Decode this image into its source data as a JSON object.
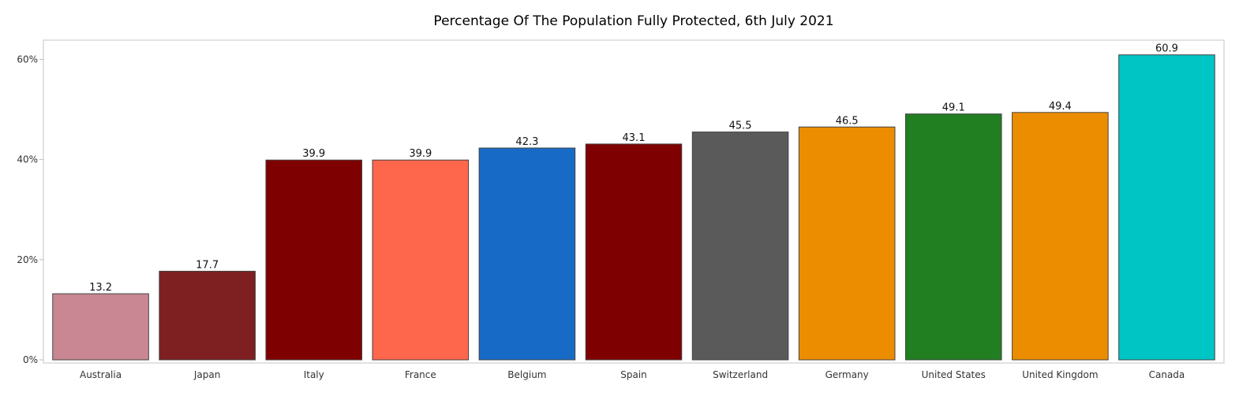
{
  "chart_data": {
    "type": "bar",
    "title": "Percentage Of The Population Fully Protected, 6th July 2021",
    "xlabel": "",
    "ylabel": "",
    "ylim": [
      0,
      63
    ],
    "yticks": [
      0,
      20,
      40,
      60
    ],
    "ytick_labels": [
      "0%",
      "20%",
      "40%",
      "60%"
    ],
    "grid": false,
    "categories": [
      "Australia",
      "Japan",
      "Italy",
      "France",
      "Belgium",
      "Spain",
      "Switzerland",
      "Germany",
      "United States",
      "United Kingdom",
      "Canada"
    ],
    "values": [
      13.2,
      17.7,
      39.9,
      39.9,
      42.3,
      43.1,
      45.5,
      46.5,
      49.1,
      49.4,
      60.9
    ],
    "value_labels": [
      "13.2",
      "17.7",
      "39.9",
      "39.9",
      "42.3",
      "43.1",
      "45.5",
      "46.5",
      "49.1",
      "49.4",
      "60.9"
    ],
    "colors": [
      "#c88792",
      "#7e1f22",
      "#7f0000",
      "#ff674d",
      "#176bc6",
      "#7f0000",
      "#5a5a5a",
      "#ec8d00",
      "#217e21",
      "#ec8d00",
      "#00c5c5"
    ]
  }
}
